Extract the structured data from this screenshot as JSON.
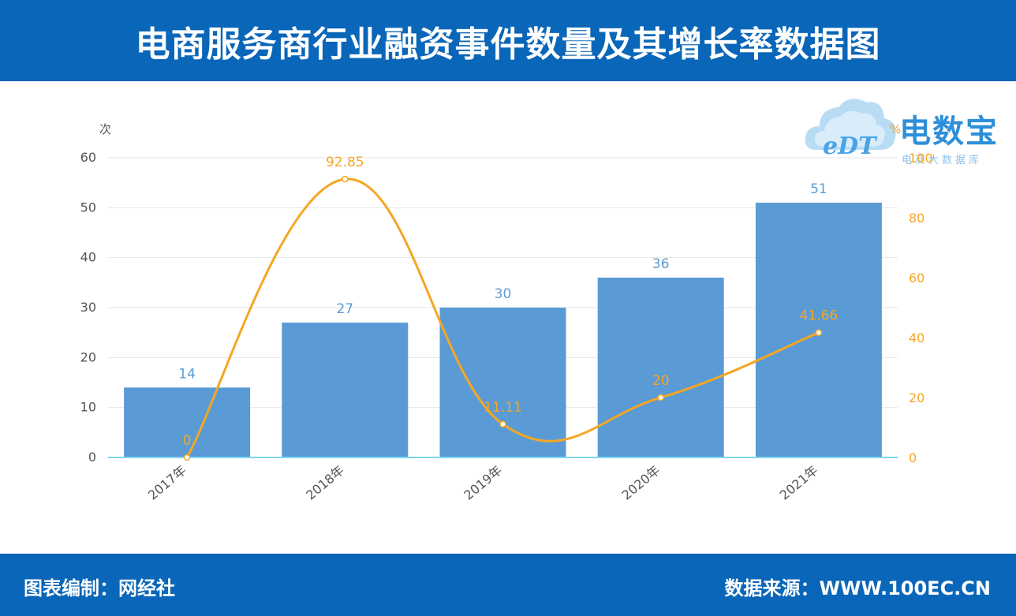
{
  "header": {
    "title": "电商服务商行业融资事件数量及其增长率数据图"
  },
  "footer": {
    "left": "图表编制：网经社",
    "right": "数据来源：WWW.100EC.CN"
  },
  "logo": {
    "brand": "电数宝",
    "sub": "电商大数据库",
    "mark": "eDT"
  },
  "colors": {
    "header_bg": "#0a66b8",
    "bar": "#5b9bd5",
    "line": "#f5a623",
    "axis": "#7fd6f2"
  },
  "chart_data": {
    "type": "bar",
    "categories": [
      "2017年",
      "2018年",
      "2019年",
      "2020年",
      "2021年"
    ],
    "series": [
      {
        "name": "",
        "type": "bar",
        "axis": "left",
        "values": [
          14,
          27,
          30,
          36,
          51
        ],
        "labels": [
          "14",
          "27",
          "30",
          "36",
          "51"
        ]
      },
      {
        "name": "",
        "type": "line",
        "axis": "right",
        "values": [
          0,
          92.85,
          11.11,
          20,
          41.66
        ],
        "labels": [
          "0",
          "92.85",
          "11.11",
          "20",
          "41.66"
        ]
      }
    ],
    "y_left": {
      "unit": "次",
      "range": [
        0,
        60
      ],
      "ticks": [
        "0",
        "10",
        "20",
        "30",
        "40",
        "50",
        "60"
      ]
    },
    "y_right": {
      "unit": "%",
      "range": [
        0,
        100
      ],
      "ticks": [
        "0",
        "20",
        "40",
        "60",
        "80",
        "100"
      ]
    },
    "grid": true,
    "legend": "none"
  }
}
